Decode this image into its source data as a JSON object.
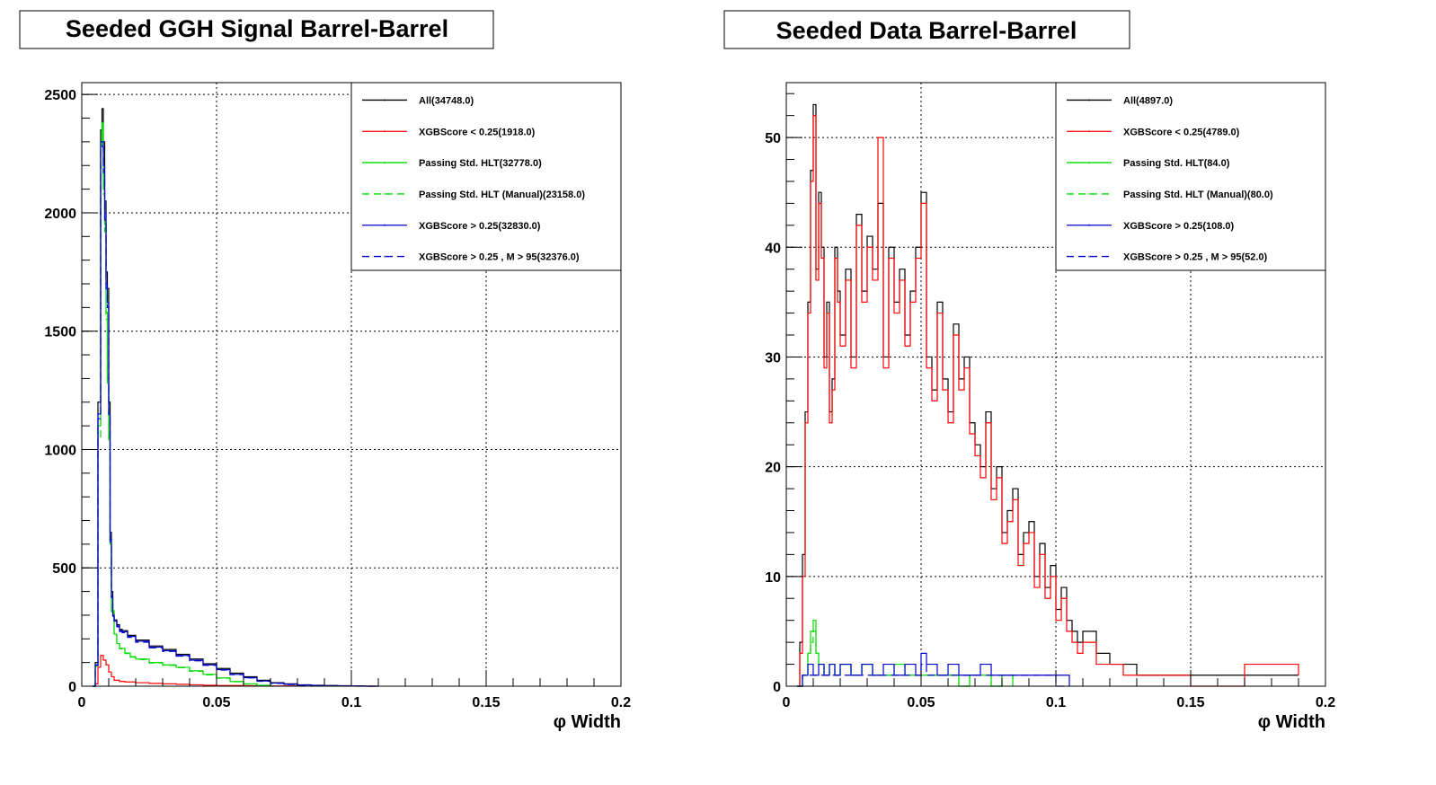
{
  "chart_data": [
    {
      "type": "line",
      "title": "Seeded GGH Signal Barrel-Barrel",
      "xlabel": "φ Width",
      "ylabel": "",
      "xlim": [
        0,
        0.2
      ],
      "ylim": [
        0,
        2550
      ],
      "x_ticks": [
        0,
        0.05,
        0.1,
        0.15,
        0.2
      ],
      "x_tick_labels": [
        "0",
        "0.05",
        "0.1",
        "0.15",
        "0.2"
      ],
      "y_ticks": [
        0,
        500,
        1000,
        1500,
        2000,
        2500
      ],
      "y_tick_labels": [
        "0",
        "500",
        "1000",
        "1500",
        "2000",
        "2500"
      ],
      "grid": true,
      "legend_position": "top-right",
      "series": [
        {
          "name": "All(34748.0)",
          "color": "#000000",
          "dashed": false,
          "x": [
            0.004,
            0.005,
            0.006,
            0.007,
            0.0075,
            0.008,
            0.0085,
            0.009,
            0.0095,
            0.01,
            0.0105,
            0.011,
            0.0115,
            0.012,
            0.013,
            0.014,
            0.015,
            0.017,
            0.02,
            0.025,
            0.03,
            0.035,
            0.04,
            0.045,
            0.05,
            0.055,
            0.06,
            0.065,
            0.07,
            0.075,
            0.08,
            0.085,
            0.09,
            0.095,
            0.1,
            0.105,
            0.11
          ],
          "y": [
            0,
            100,
            1200,
            2350,
            2440,
            2300,
            2050,
            1750,
            1680,
            1200,
            650,
            400,
            310,
            280,
            260,
            240,
            235,
            215,
            195,
            170,
            155,
            135,
            115,
            95,
            75,
            55,
            40,
            25,
            15,
            10,
            6,
            4,
            3,
            2,
            1,
            0,
            0
          ]
        },
        {
          "name": "XGBScore < 0.25(1918.0)",
          "color": "#ff0000",
          "dashed": false,
          "x": [
            0.004,
            0.005,
            0.006,
            0.007,
            0.008,
            0.009,
            0.01,
            0.011,
            0.012,
            0.014,
            0.016,
            0.02,
            0.025,
            0.03,
            0.035,
            0.04,
            0.045,
            0.05,
            0.06,
            0.07,
            0.08
          ],
          "y": [
            0,
            10,
            80,
            130,
            110,
            90,
            60,
            40,
            25,
            20,
            18,
            15,
            12,
            10,
            8,
            6,
            4,
            3,
            2,
            1,
            0
          ]
        },
        {
          "name": "Passing Std. HLT(32778.0)",
          "color": "#00dd00",
          "dashed": false,
          "x": [
            0.004,
            0.005,
            0.006,
            0.007,
            0.0075,
            0.008,
            0.0085,
            0.009,
            0.0095,
            0.01,
            0.0105,
            0.011,
            0.012,
            0.013,
            0.014,
            0.016,
            0.018,
            0.02,
            0.025,
            0.03,
            0.035,
            0.04,
            0.045,
            0.05,
            0.055,
            0.06,
            0.065,
            0.07
          ],
          "y": [
            0,
            90,
            1100,
            2300,
            2380,
            2100,
            1950,
            1580,
            1300,
            1050,
            600,
            320,
            220,
            180,
            160,
            140,
            125,
            115,
            100,
            90,
            80,
            65,
            50,
            35,
            20,
            10,
            4,
            0
          ]
        },
        {
          "name": "Passing Std. HLT (Manual)(23158.0)",
          "color": "#00dd00",
          "dashed": true,
          "x": [
            0.004,
            0.005,
            0.006,
            0.007,
            0.0075,
            0.008,
            0.0085,
            0.009,
            0.0095,
            0.01,
            0.0105,
            0.011,
            0.012,
            0.013,
            0.014,
            0.016,
            0.018,
            0.02,
            0.025,
            0.03,
            0.035,
            0.04,
            0.045,
            0.05,
            0.055,
            0.06,
            0.065,
            0.07
          ],
          "y": [
            0,
            85,
            1050,
            2280,
            2350,
            2080,
            1920,
            1550,
            1280,
            1030,
            590,
            315,
            215,
            178,
            158,
            138,
            123,
            113,
            98,
            88,
            78,
            63,
            48,
            34,
            19,
            9,
            3,
            0
          ]
        },
        {
          "name": "XGBScore > 0.25(32830.0)",
          "color": "#0000cc",
          "dashed": false,
          "x": [
            0.004,
            0.005,
            0.006,
            0.007,
            0.0075,
            0.008,
            0.0085,
            0.009,
            0.0095,
            0.01,
            0.0105,
            0.011,
            0.0115,
            0.012,
            0.013,
            0.014,
            0.015,
            0.017,
            0.02,
            0.025,
            0.03,
            0.035,
            0.04,
            0.045,
            0.05,
            0.055,
            0.06,
            0.065,
            0.07,
            0.075,
            0.08,
            0.085,
            0.09,
            0.095,
            0.1,
            0.105,
            0.11
          ],
          "y": [
            0,
            90,
            1150,
            2300,
            2300,
            2200,
            2000,
            1700,
            1620,
            1150,
            620,
            380,
            300,
            275,
            255,
            235,
            230,
            210,
            190,
            165,
            150,
            130,
            110,
            90,
            70,
            50,
            36,
            22,
            13,
            8,
            5,
            3,
            2,
            1,
            1,
            0,
            0
          ]
        },
        {
          "name": "XGBScore > 0.25 , M > 95(32376.0)",
          "color": "#0000cc",
          "dashed": true,
          "x": [
            0.004,
            0.005,
            0.006,
            0.007,
            0.0075,
            0.008,
            0.0085,
            0.009,
            0.0095,
            0.01,
            0.0105,
            0.011,
            0.0115,
            0.012,
            0.013,
            0.014,
            0.015,
            0.017,
            0.02,
            0.025,
            0.03,
            0.035,
            0.04,
            0.045,
            0.05,
            0.055,
            0.06,
            0.065,
            0.07,
            0.075,
            0.08,
            0.085,
            0.09,
            0.095,
            0.1,
            0.105,
            0.11
          ],
          "y": [
            0,
            88,
            1130,
            2270,
            2280,
            2170,
            1970,
            1680,
            1600,
            1130,
            610,
            375,
            296,
            271,
            251,
            231,
            226,
            206,
            186,
            162,
            147,
            127,
            107,
            88,
            68,
            49,
            35,
            21,
            12,
            7,
            4,
            2,
            1,
            1,
            0,
            0,
            0
          ]
        }
      ]
    },
    {
      "type": "line",
      "title": "Seeded Data Barrel-Barrel",
      "xlabel": "φ Width",
      "ylabel": "",
      "xlim": [
        0,
        0.2
      ],
      "ylim": [
        0,
        55
      ],
      "x_ticks": [
        0,
        0.05,
        0.1,
        0.15,
        0.2
      ],
      "x_tick_labels": [
        "0",
        "0.05",
        "0.1",
        "0.15",
        "0.2"
      ],
      "y_ticks": [
        0,
        10,
        20,
        30,
        40,
        50
      ],
      "y_tick_labels": [
        "0",
        "10",
        "20",
        "30",
        "40",
        "50"
      ],
      "grid": true,
      "legend_position": "top-right",
      "series": [
        {
          "name": "All(4897.0)",
          "color": "#000000",
          "dashed": false,
          "x": [
            0.004,
            0.005,
            0.006,
            0.007,
            0.008,
            0.009,
            0.01,
            0.011,
            0.012,
            0.013,
            0.014,
            0.015,
            0.016,
            0.017,
            0.018,
            0.019,
            0.02,
            0.022,
            0.024,
            0.026,
            0.028,
            0.03,
            0.032,
            0.034,
            0.036,
            0.038,
            0.04,
            0.042,
            0.044,
            0.046,
            0.048,
            0.05,
            0.052,
            0.054,
            0.056,
            0.058,
            0.06,
            0.062,
            0.064,
            0.066,
            0.068,
            0.07,
            0.072,
            0.074,
            0.076,
            0.078,
            0.08,
            0.082,
            0.084,
            0.086,
            0.088,
            0.09,
            0.092,
            0.094,
            0.096,
            0.098,
            0.1,
            0.102,
            0.104,
            0.106,
            0.108,
            0.11,
            0.115,
            0.12,
            0.125,
            0.13,
            0.135,
            0.14,
            0.145,
            0.15,
            0.17,
            0.19
          ],
          "y": [
            0,
            4,
            12,
            25,
            35,
            47,
            53,
            38,
            45,
            40,
            30,
            35,
            25,
            28,
            40,
            36,
            32,
            38,
            30,
            43,
            36,
            41,
            38,
            44,
            30,
            40,
            35,
            38,
            32,
            36,
            40,
            45,
            30,
            27,
            35,
            28,
            25,
            33,
            28,
            30,
            24,
            22,
            20,
            25,
            18,
            20,
            14,
            16,
            18,
            12,
            14,
            15,
            10,
            13,
            9,
            11,
            7,
            9,
            6,
            5,
            4,
            5,
            3,
            2,
            2,
            1,
            1,
            1,
            1,
            1,
            1,
            1
          ]
        },
        {
          "name": "XGBScore < 0.25(4789.0)",
          "color": "#ff0000",
          "dashed": false,
          "x": [
            0.004,
            0.005,
            0.006,
            0.007,
            0.008,
            0.009,
            0.01,
            0.011,
            0.012,
            0.013,
            0.014,
            0.015,
            0.016,
            0.017,
            0.018,
            0.019,
            0.02,
            0.022,
            0.024,
            0.026,
            0.028,
            0.03,
            0.032,
            0.034,
            0.036,
            0.038,
            0.04,
            0.042,
            0.044,
            0.046,
            0.048,
            0.05,
            0.052,
            0.054,
            0.056,
            0.058,
            0.06,
            0.062,
            0.064,
            0.066,
            0.068,
            0.07,
            0.072,
            0.074,
            0.076,
            0.078,
            0.08,
            0.082,
            0.084,
            0.086,
            0.088,
            0.09,
            0.092,
            0.094,
            0.096,
            0.098,
            0.1,
            0.102,
            0.104,
            0.106,
            0.108,
            0.11,
            0.115,
            0.12,
            0.125,
            0.13,
            0.135,
            0.14,
            0.145,
            0.15,
            0.17,
            0.19
          ],
          "y": [
            0,
            3,
            10,
            24,
            34,
            46,
            52,
            37,
            44,
            39,
            29,
            34,
            24,
            27,
            39,
            35,
            31,
            37,
            29,
            42,
            35,
            40,
            37,
            50,
            29,
            39,
            34,
            37,
            31,
            35,
            39,
            44,
            29,
            26,
            34,
            27,
            24,
            32,
            27,
            29,
            23,
            21,
            19,
            24,
            17,
            19,
            13,
            15,
            17,
            11,
            13,
            14,
            9,
            12,
            8,
            10,
            6,
            8,
            5,
            4,
            3,
            4,
            2,
            2,
            1,
            1,
            1,
            1,
            1,
            0,
            2,
            1
          ]
        },
        {
          "name": "Passing Std. HLT(84.0)",
          "color": "#00dd00",
          "dashed": false,
          "x": [
            0.004,
            0.006,
            0.008,
            0.009,
            0.01,
            0.011,
            0.012,
            0.014,
            0.016,
            0.018,
            0.02,
            0.024,
            0.028,
            0.032,
            0.036,
            0.04,
            0.044,
            0.048,
            0.052,
            0.056,
            0.06,
            0.064,
            0.068,
            0.072,
            0.076,
            0.08,
            0.084
          ],
          "y": [
            0,
            1,
            3,
            5,
            6,
            3,
            2,
            1,
            2,
            1,
            2,
            1,
            2,
            1,
            1,
            2,
            1,
            1,
            1,
            1,
            1,
            0,
            1,
            1,
            0,
            1,
            0
          ]
        },
        {
          "name": "Passing Std. HLT (Manual)(80.0)",
          "color": "#00dd00",
          "dashed": true,
          "x": [
            0.004,
            0.006,
            0.008,
            0.009,
            0.01,
            0.011,
            0.012,
            0.014,
            0.016,
            0.018,
            0.02,
            0.024,
            0.028,
            0.032,
            0.036,
            0.04,
            0.044,
            0.048,
            0.052,
            0.056,
            0.06,
            0.064,
            0.068,
            0.072,
            0.076,
            0.08,
            0.084
          ],
          "y": [
            0,
            1,
            3,
            4,
            5,
            3,
            2,
            1,
            2,
            1,
            2,
            1,
            2,
            1,
            1,
            2,
            1,
            1,
            1,
            1,
            1,
            0,
            1,
            1,
            0,
            1,
            0
          ]
        },
        {
          "name": "XGBScore > 0.25(108.0)",
          "color": "#0000cc",
          "dashed": false,
          "x": [
            0.004,
            0.006,
            0.008,
            0.01,
            0.012,
            0.014,
            0.016,
            0.018,
            0.02,
            0.024,
            0.028,
            0.032,
            0.036,
            0.04,
            0.044,
            0.048,
            0.05,
            0.052,
            0.056,
            0.06,
            0.064,
            0.068,
            0.072,
            0.076,
            0.08,
            0.085,
            0.09,
            0.095,
            0.1,
            0.105
          ],
          "y": [
            0,
            1,
            2,
            1,
            2,
            1,
            2,
            1,
            2,
            1,
            2,
            1,
            2,
            1,
            2,
            1,
            3,
            2,
            1,
            2,
            1,
            1,
            2,
            1,
            1,
            1,
            1,
            1,
            1,
            0
          ]
        },
        {
          "name": "XGBScore > 0.25 , M > 95(52.0)",
          "color": "#0000cc",
          "dashed": true,
          "x": [
            0.004,
            0.006,
            0.008,
            0.01,
            0.012,
            0.014,
            0.016,
            0.018,
            0.02,
            0.024,
            0.028,
            0.032,
            0.036,
            0.04,
            0.044,
            0.048,
            0.05,
            0.052,
            0.056,
            0.06,
            0.064,
            0.068,
            0.072,
            0.076,
            0.08,
            0.085,
            0.09,
            0.095,
            0.1,
            0.105
          ],
          "y": [
            0,
            1,
            1,
            1,
            1,
            1,
            1,
            1,
            1,
            1,
            1,
            1,
            1,
            1,
            1,
            1,
            2,
            1,
            1,
            1,
            1,
            1,
            1,
            1,
            1,
            1,
            1,
            1,
            0,
            0
          ]
        }
      ]
    }
  ]
}
